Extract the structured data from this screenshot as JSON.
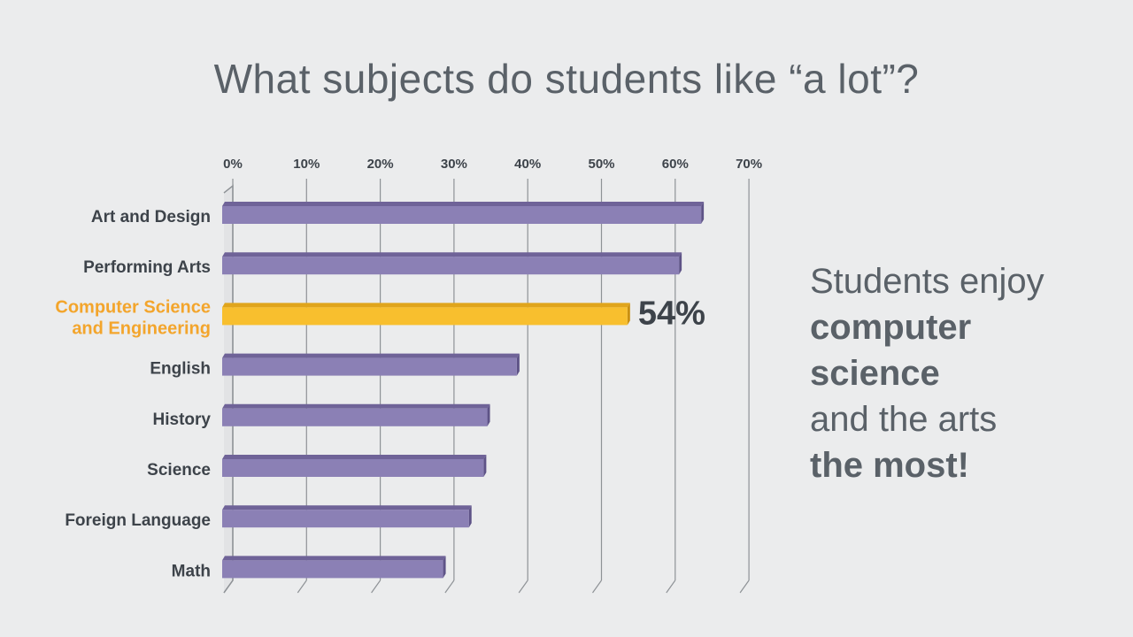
{
  "title": "What subjects do students like “a lot”?",
  "callout": {
    "lines": [
      {
        "text": "Students enjoy",
        "bold": false
      },
      {
        "text": "computer",
        "bold": true
      },
      {
        "text": "science",
        "bold": true
      },
      {
        "text": "and the arts",
        "bold": false
      },
      {
        "text": "the most!",
        "bold": true
      }
    ]
  },
  "colors": {
    "bar": "#8b80b5",
    "bar_top": "#6f6398",
    "bar_side": "#5e5387",
    "highlight": "#f8bf2e",
    "highlight_top": "#e0a51c",
    "highlight_side": "#c98f10",
    "highlight_label": "#f3a52c",
    "text": "#3d434a",
    "grid": "#8e9296"
  },
  "chart_data": {
    "type": "bar",
    "orientation": "horizontal",
    "categories": [
      "Art and Design",
      "Performing Arts",
      "Computer Science and Engineering",
      "English",
      "History",
      "Science",
      "Foreign Language",
      "Math"
    ],
    "category_label_lines": [
      [
        "Art and Design"
      ],
      [
        "Performing Arts"
      ],
      [
        "Computer Science",
        "and Engineering"
      ],
      [
        "English"
      ],
      [
        "History"
      ],
      [
        "Science"
      ],
      [
        "Foreign Language"
      ],
      [
        "Math"
      ]
    ],
    "values": [
      64,
      61,
      54,
      39,
      35,
      34.5,
      32.5,
      29
    ],
    "highlight_index": 2,
    "highlight_value_label": "54%",
    "xlim": [
      0,
      70
    ],
    "xticks": [
      0,
      10,
      20,
      30,
      40,
      50,
      60,
      70
    ],
    "xtick_labels": [
      "0%",
      "10%",
      "20%",
      "30%",
      "40%",
      "50%",
      "60%",
      "70%"
    ],
    "axis_position": "top",
    "grid": true
  }
}
